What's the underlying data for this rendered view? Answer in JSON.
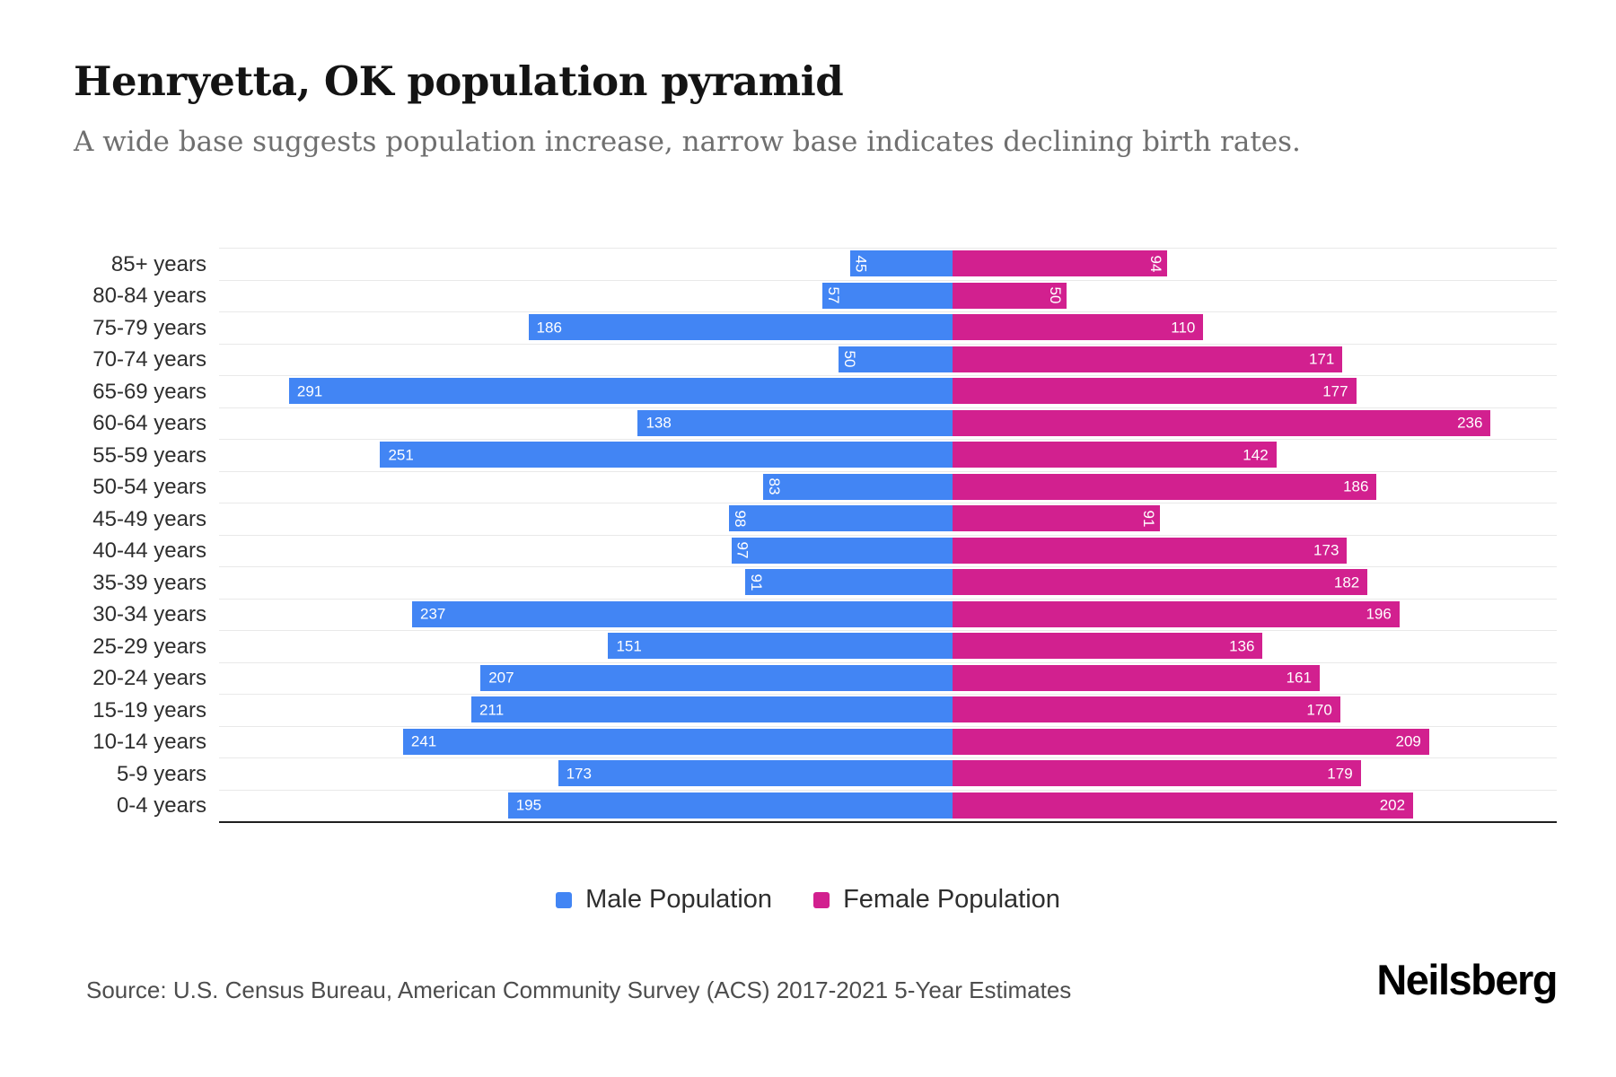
{
  "page": {
    "title": "Henryetta, OK population pyramid",
    "subtitle": "A wide base suggests population increase, narrow base indicates declining birth rates.",
    "source": "Source: U.S. Census Bureau, American Community Survey (ACS) 2017-2021 5-Year Estimates",
    "brand": "Neilsberg"
  },
  "chart_data": {
    "type": "bar",
    "orientation": "horizontal-pyramid",
    "title": "Henryetta, OK population pyramid",
    "categories": [
      "85+ years",
      "80-84 years",
      "75-79 years",
      "70-74 years",
      "65-69 years",
      "60-64 years",
      "55-59 years",
      "50-54 years",
      "45-49 years",
      "40-44 years",
      "35-39 years",
      "30-34 years",
      "25-29 years",
      "20-24 years",
      "15-19 years",
      "10-14 years",
      "5-9 years",
      "0-4 years"
    ],
    "series": [
      {
        "name": "Male Population",
        "color": "#4285f4",
        "side": "left",
        "values": [
          45,
          57,
          186,
          50,
          291,
          138,
          251,
          83,
          98,
          97,
          91,
          237,
          151,
          207,
          211,
          241,
          173,
          195
        ]
      },
      {
        "name": "Female Population",
        "color": "#d2208f",
        "side": "right",
        "values": [
          94,
          50,
          110,
          171,
          177,
          236,
          142,
          186,
          91,
          173,
          182,
          196,
          136,
          161,
          170,
          209,
          179,
          202
        ]
      }
    ],
    "value_labels": "inside-end, white, rotated vertically when bar value < 100",
    "value_label_rotation_threshold": 100,
    "grid": true,
    "legend_position": "bottom",
    "xlabel": "",
    "ylabel": ""
  }
}
